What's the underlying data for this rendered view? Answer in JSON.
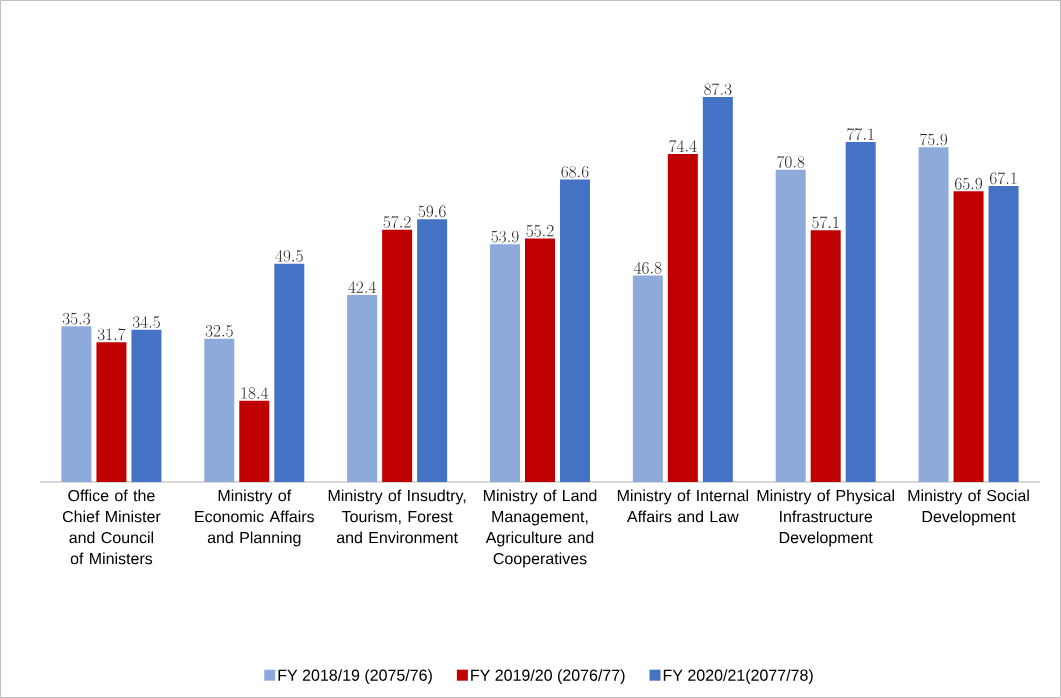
{
  "chart_data": {
    "type": "bar",
    "categories": [
      "Office of the Chief Minister and Council of Ministers",
      "Ministry of Economic Affairs and Planning",
      "Ministry of Insudtry, Tourism, Forest and Environment",
      "Ministry of Land Management, Agriculture and Cooperatives",
      "Ministry of Internal Affairs and Law",
      "Ministry of Physical Infrastructure Development",
      "Ministry of Social Development"
    ],
    "series": [
      {
        "name": "FY 2018/19 (2075/76)",
        "color": "#8eaadb",
        "values": [
          35.3,
          32.5,
          42.4,
          53.9,
          46.8,
          70.8,
          75.9
        ]
      },
      {
        "name": "FY 2019/20 (2076/77)",
        "color": "#c00000",
        "values": [
          31.7,
          18.4,
          57.2,
          55.2,
          74.4,
          57.1,
          65.9
        ]
      },
      {
        "name": "FY 2020/21(2077/78)",
        "color": "#4472c4",
        "values": [
          34.5,
          49.5,
          59.6,
          68.6,
          87.3,
          77.1,
          67.1
        ]
      }
    ],
    "data_labels": true,
    "legend": "bottom"
  }
}
